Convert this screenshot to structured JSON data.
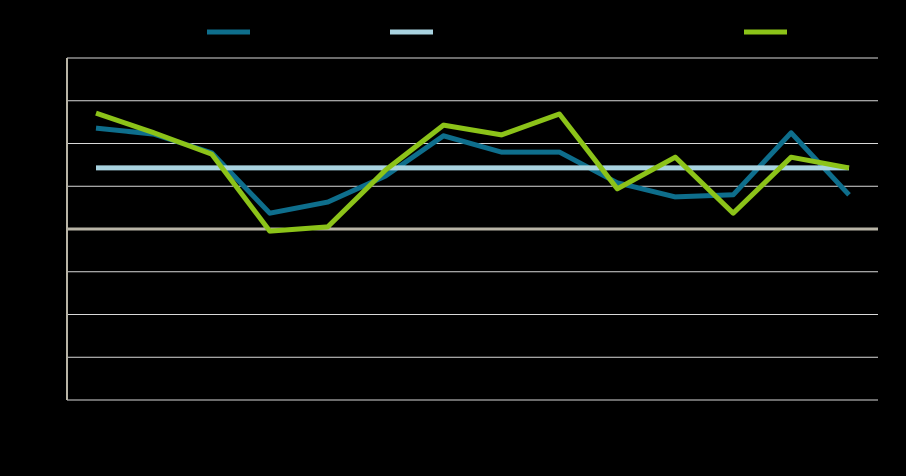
{
  "chart_data": {
    "type": "line",
    "categories": [
      null,
      null,
      null,
      null,
      null,
      null,
      null,
      null,
      null,
      null,
      null,
      null,
      null,
      null
    ],
    "series": [
      {
        "color": "#0e6e8c",
        "values": [
          2.36,
          2.22,
          1.78,
          0.37,
          0.63,
          1.24,
          2.18,
          1.8,
          1.8,
          1.08,
          0.75,
          0.8,
          2.25,
          0.8
        ]
      },
      {
        "color": "#a9d3e0",
        "values": [
          1.43,
          1.43,
          1.43,
          1.43,
          1.43,
          1.43,
          1.43,
          1.43,
          1.43,
          1.43,
          1.43,
          1.43,
          1.43,
          1.43
        ]
      },
      {
        "color": "#8cc319",
        "values": [
          2.71,
          2.25,
          1.75,
          -0.05,
          0.05,
          1.38,
          2.43,
          2.2,
          2.69,
          0.94,
          1.68,
          0.37,
          1.68,
          1.43
        ]
      }
    ],
    "ylim": [
      -4,
      4
    ],
    "yticks": [
      -4,
      -3,
      -2,
      -1,
      0,
      1,
      2,
      3,
      4
    ],
    "grid": true
  }
}
